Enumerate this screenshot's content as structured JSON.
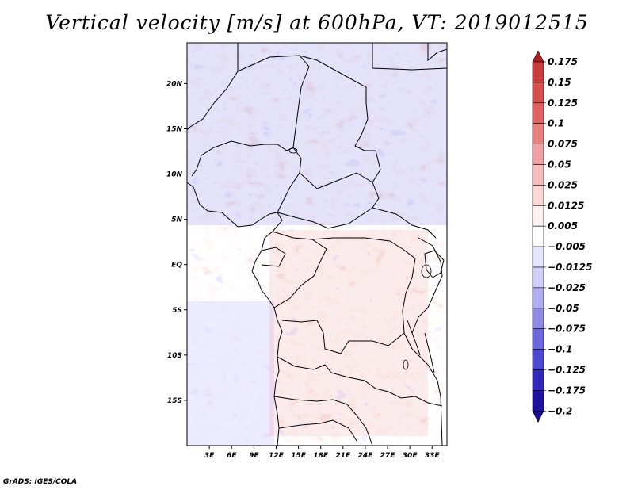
{
  "title": "Vertical velocity [m/s] at 600hPa, VT: 2019012515",
  "credit": "GrADS: IGES/COLA",
  "map": {
    "lat_labels": [
      "20N",
      "15N",
      "10N",
      "5N",
      "EQ",
      "5S",
      "10S",
      "15S"
    ],
    "lon_labels": [
      "3E",
      "6E",
      "9E",
      "12E",
      "15E",
      "18E",
      "21E",
      "24E",
      "27E",
      "30E",
      "33E"
    ],
    "lat_values": [
      20,
      15,
      10,
      5,
      0,
      -5,
      -10,
      -15
    ],
    "lon_values": [
      3,
      6,
      9,
      12,
      15,
      18,
      21,
      24,
      27,
      30,
      33
    ],
    "extent": {
      "lon_min": 0,
      "lon_max": 35,
      "lat_min": -20,
      "lat_max": 24.5
    }
  },
  "colorbar": {
    "levels": [
      "0.175",
      "0.15",
      "0.125",
      "0.1",
      "0.075",
      "0.05",
      "0.025",
      "0.0125",
      "0.005",
      "−0.005",
      "−0.0125",
      "−0.025",
      "−0.05",
      "−0.075",
      "−0.1",
      "−0.125",
      "−0.175",
      "−0.2"
    ],
    "colors": [
      "#b41e23",
      "#cc3b3b",
      "#d64e4e",
      "#e06464",
      "#e98080",
      "#f0a0a0",
      "#f5bcbc",
      "#fad6d6",
      "#fdf0f0",
      "#ffffff",
      "#e4e4ff",
      "#cfcdf7",
      "#b0acf0",
      "#8f8ae6",
      "#6f68dc",
      "#4f48d0",
      "#3228bb",
      "#2010a0",
      "#1a0a96"
    ]
  }
}
